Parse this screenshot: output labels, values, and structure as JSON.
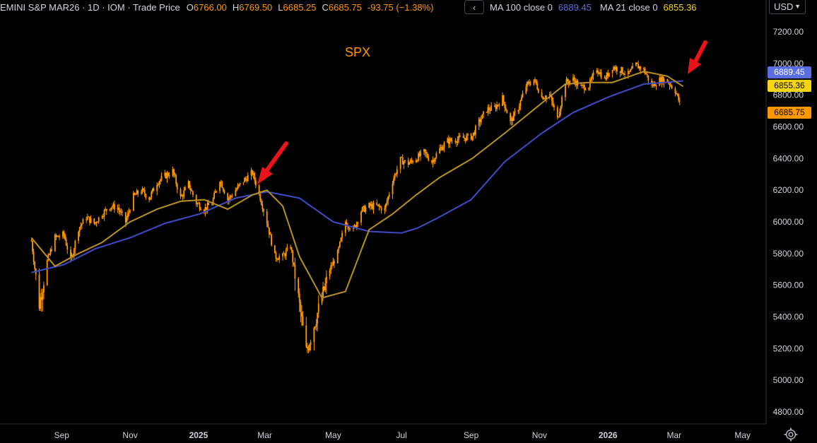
{
  "header": {
    "symbol": "EMINI S&P MAR26 · 1D · IOM · Trade Price",
    "o_label": "O",
    "o": "6766.00",
    "h_label": "H",
    "h": "6769.50",
    "l_label": "L",
    "l": "6685.25",
    "c_label": "C",
    "c": "6685.75",
    "change": "-93.75 (−1.38%)"
  },
  "ma_bar": {
    "nav_glyph": "‹",
    "ma100_label": "MA 100 close 0",
    "ma100_value": "6889.45",
    "ma21_label": "MA 21 close 0",
    "ma21_value": "6855.36"
  },
  "currency": {
    "label": "USD"
  },
  "price_tags": {
    "ma100": "6889.45",
    "ma21": "6855.36",
    "last": "6685.75"
  },
  "colors": {
    "candle": "#ff9800",
    "ma100": "#3f4bc8",
    "ma21": "#b8901e",
    "ma100_tag": "#5b6ee1",
    "ma21_tag": "#f5d414",
    "last_tag": "#ff9800",
    "arrow": "#e8141a"
  },
  "chart_data": {
    "type": "line",
    "title": "SPX",
    "xlabel": "",
    "ylabel": "",
    "ylim": [
      4700,
      7300
    ],
    "y_ticks": [
      "7200.00",
      "7000.00",
      "6800.00",
      "6600.00",
      "6400.00",
      "6200.00",
      "6000.00",
      "5800.00",
      "5600.00",
      "5400.00",
      "5200.00",
      "5000.00",
      "4800.00"
    ],
    "x_ticks": [
      "Sep",
      "Nov",
      "2025",
      "Mar",
      "May",
      "Jul",
      "Sep",
      "Nov",
      "2026",
      "Mar",
      "May"
    ],
    "grid": false,
    "series": [
      {
        "name": "EMINI S&P MAR26",
        "style": "candles",
        "points": [
          [
            "2024-08-05",
            5880
          ],
          [
            "2024-08-12",
            5480
          ],
          [
            "2024-08-19",
            5750
          ],
          [
            "2024-08-26",
            5900
          ],
          [
            "2024-09-03",
            5920
          ],
          [
            "2024-09-09",
            5750
          ],
          [
            "2024-09-16",
            5960
          ],
          [
            "2024-09-23",
            6030
          ],
          [
            "2024-09-30",
            5990
          ],
          [
            "2024-10-07",
            6050
          ],
          [
            "2024-10-14",
            6100
          ],
          [
            "2024-10-21",
            6090
          ],
          [
            "2024-10-28",
            6000
          ],
          [
            "2024-11-04",
            6160
          ],
          [
            "2024-11-11",
            6200
          ],
          [
            "2024-11-18",
            6150
          ],
          [
            "2024-11-25",
            6250
          ],
          [
            "2024-12-02",
            6290
          ],
          [
            "2024-12-09",
            6320
          ],
          [
            "2024-12-16",
            6150
          ],
          [
            "2024-12-23",
            6240
          ],
          [
            "2024-12-30",
            6120
          ],
          [
            "2025-01-06",
            6080
          ],
          [
            "2025-01-13",
            6120
          ],
          [
            "2025-01-20",
            6270
          ],
          [
            "2025-01-27",
            6140
          ],
          [
            "2025-02-03",
            6200
          ],
          [
            "2025-02-10",
            6260
          ],
          [
            "2025-02-18",
            6310
          ],
          [
            "2025-02-24",
            6180
          ],
          [
            "2025-03-03",
            6000
          ],
          [
            "2025-03-10",
            5780
          ],
          [
            "2025-03-17",
            5780
          ],
          [
            "2025-03-24",
            5850
          ],
          [
            "2025-03-31",
            5520
          ],
          [
            "2025-04-07",
            5180
          ],
          [
            "2025-04-14",
            5350
          ],
          [
            "2025-04-21",
            5520
          ],
          [
            "2025-04-28",
            5700
          ],
          [
            "2025-05-05",
            5800
          ],
          [
            "2025-05-12",
            6000
          ],
          [
            "2025-05-19",
            5950
          ],
          [
            "2025-05-26",
            6070
          ],
          [
            "2025-06-02",
            6100
          ],
          [
            "2025-06-09",
            6100
          ],
          [
            "2025-06-16",
            6080
          ],
          [
            "2025-06-23",
            6260
          ],
          [
            "2025-06-30",
            6390
          ],
          [
            "2025-07-07",
            6370
          ],
          [
            "2025-07-14",
            6400
          ],
          [
            "2025-07-21",
            6440
          ],
          [
            "2025-07-28",
            6380
          ],
          [
            "2025-08-04",
            6460
          ],
          [
            "2025-08-11",
            6510
          ],
          [
            "2025-08-18",
            6520
          ],
          [
            "2025-08-25",
            6530
          ],
          [
            "2025-09-02",
            6540
          ],
          [
            "2025-09-08",
            6630
          ],
          [
            "2025-09-15",
            6710
          ],
          [
            "2025-09-22",
            6720
          ],
          [
            "2025-09-29",
            6780
          ],
          [
            "2025-10-06",
            6630
          ],
          [
            "2025-10-13",
            6720
          ],
          [
            "2025-10-20",
            6860
          ],
          [
            "2025-10-27",
            6900
          ],
          [
            "2025-11-03",
            6790
          ],
          [
            "2025-11-10",
            6800
          ],
          [
            "2025-11-17",
            6650
          ],
          [
            "2025-11-24",
            6880
          ],
          [
            "2025-12-01",
            6900
          ],
          [
            "2025-12-08",
            6850
          ],
          [
            "2025-12-15",
            6860
          ],
          [
            "2025-12-22",
            6970
          ],
          [
            "2025-12-29",
            6900
          ],
          [
            "2026-01-05",
            6980
          ],
          [
            "2026-01-12",
            6960
          ],
          [
            "2026-01-19",
            6930
          ],
          [
            "2026-01-26",
            6990
          ],
          [
            "2026-02-02",
            6960
          ],
          [
            "2026-02-09",
            6860
          ],
          [
            "2026-02-17",
            6900
          ],
          [
            "2026-02-23",
            6890
          ],
          [
            "2026-03-02",
            6830
          ],
          [
            "2026-03-09",
            6685.75
          ]
        ]
      },
      {
        "name": "MA 100 close 0",
        "style": "line",
        "points": [
          [
            "2024-08-05",
            5680
          ],
          [
            "2024-09-03",
            5730
          ],
          [
            "2024-10-01",
            5830
          ],
          [
            "2024-11-01",
            5900
          ],
          [
            "2024-12-02",
            5990
          ],
          [
            "2025-01-02",
            6050
          ],
          [
            "2025-02-03",
            6150
          ],
          [
            "2025-03-03",
            6190
          ],
          [
            "2025-04-01",
            6150
          ],
          [
            "2025-05-01",
            6000
          ],
          [
            "2025-06-02",
            5940
          ],
          [
            "2025-07-01",
            5930
          ],
          [
            "2025-07-15",
            5960
          ],
          [
            "2025-08-01",
            6020
          ],
          [
            "2025-09-01",
            6140
          ],
          [
            "2025-10-01",
            6380
          ],
          [
            "2025-11-03",
            6560
          ],
          [
            "2025-12-01",
            6690
          ],
          [
            "2026-01-02",
            6790
          ],
          [
            "2026-02-02",
            6870
          ],
          [
            "2026-03-09",
            6889.45
          ]
        ]
      },
      {
        "name": "MA 21 close 0",
        "style": "line",
        "points": [
          [
            "2024-08-05",
            5900
          ],
          [
            "2024-08-26",
            5720
          ],
          [
            "2024-09-16",
            5800
          ],
          [
            "2024-10-07",
            5870
          ],
          [
            "2024-11-01",
            6000
          ],
          [
            "2024-11-25",
            6080
          ],
          [
            "2024-12-16",
            6130
          ],
          [
            "2025-01-06",
            6140
          ],
          [
            "2025-01-27",
            6080
          ],
          [
            "2025-02-18",
            6170
          ],
          [
            "2025-03-03",
            6200
          ],
          [
            "2025-03-17",
            6100
          ],
          [
            "2025-04-01",
            5780
          ],
          [
            "2025-04-21",
            5520
          ],
          [
            "2025-05-12",
            5560
          ],
          [
            "2025-06-02",
            5950
          ],
          [
            "2025-06-23",
            6050
          ],
          [
            "2025-07-14",
            6170
          ],
          [
            "2025-08-04",
            6280
          ],
          [
            "2025-09-02",
            6400
          ],
          [
            "2025-10-01",
            6560
          ],
          [
            "2025-11-03",
            6750
          ],
          [
            "2025-11-24",
            6870
          ],
          [
            "2025-12-15",
            6880
          ],
          [
            "2026-01-05",
            6880
          ],
          [
            "2026-02-02",
            6950
          ],
          [
            "2026-02-23",
            6920
          ],
          [
            "2026-03-09",
            6855.36
          ]
        ]
      }
    ]
  }
}
